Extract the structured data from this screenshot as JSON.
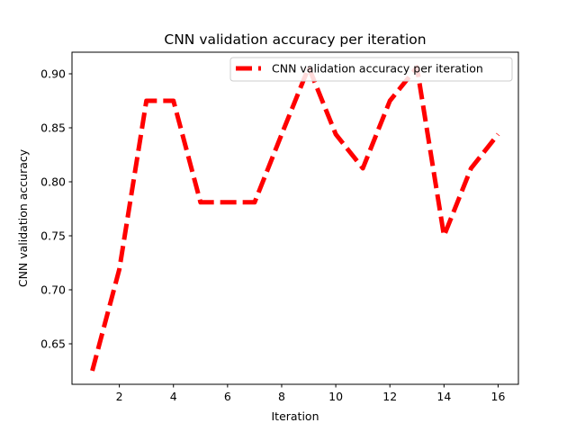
{
  "chart_data": {
    "type": "line",
    "title": "CNN validation accuracy per iteration",
    "xlabel": "Iteration",
    "ylabel": "CNN validation accuracy",
    "xlim": [
      0.25,
      16.75
    ],
    "ylim": [
      0.6125,
      0.92
    ],
    "xticks": [
      2,
      4,
      6,
      8,
      10,
      12,
      14,
      16
    ],
    "yticks": [
      0.65,
      0.7,
      0.75,
      0.8,
      0.85,
      0.9
    ],
    "grid": false,
    "legend_position": "top-right",
    "series": [
      {
        "name": "CNN validation accuracy per iteration",
        "color": "#ff0000",
        "line_style": "dashed",
        "x": [
          1,
          2,
          3,
          4,
          5,
          6,
          7,
          8,
          9,
          10,
          11,
          12,
          13,
          14,
          15,
          16
        ],
        "y": [
          0.625,
          0.719,
          0.875,
          0.875,
          0.781,
          0.781,
          0.781,
          0.844,
          0.906,
          0.844,
          0.8125,
          0.875,
          0.906,
          0.75,
          0.8125,
          0.844
        ]
      }
    ]
  }
}
